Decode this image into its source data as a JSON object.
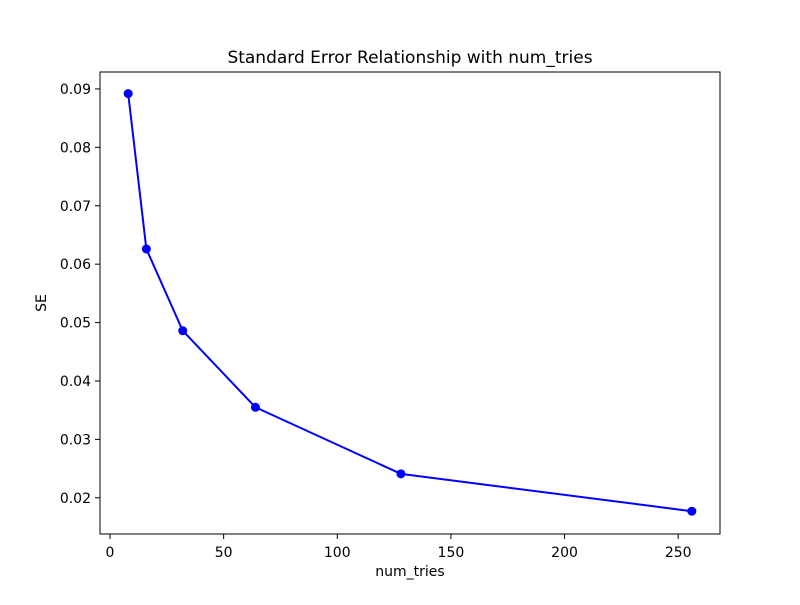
{
  "figure": {
    "background": "#ffffff"
  },
  "chart_data": {
    "type": "line",
    "title": "Standard Error Relationship with num_tries",
    "xlabel": "num_tries",
    "ylabel": "SE",
    "x": [
      8,
      16,
      32,
      64,
      128,
      256
    ],
    "y": [
      0.0892,
      0.0626,
      0.0486,
      0.0355,
      0.0241,
      0.0177
    ],
    "line_color": "#0000ff",
    "marker": "circle",
    "marker_color": "#0000ff",
    "axis_color": "#000000",
    "xticks": [
      0,
      50,
      100,
      150,
      200,
      250
    ],
    "yticks": [
      0.02,
      0.03,
      0.04,
      0.05,
      0.06,
      0.07,
      0.08,
      0.09
    ],
    "ytick_decimals": 2,
    "xlim": [
      -4.4,
      268.4
    ],
    "ylim": [
      0.0138,
      0.0929
    ],
    "grid": false,
    "legend": "none"
  }
}
